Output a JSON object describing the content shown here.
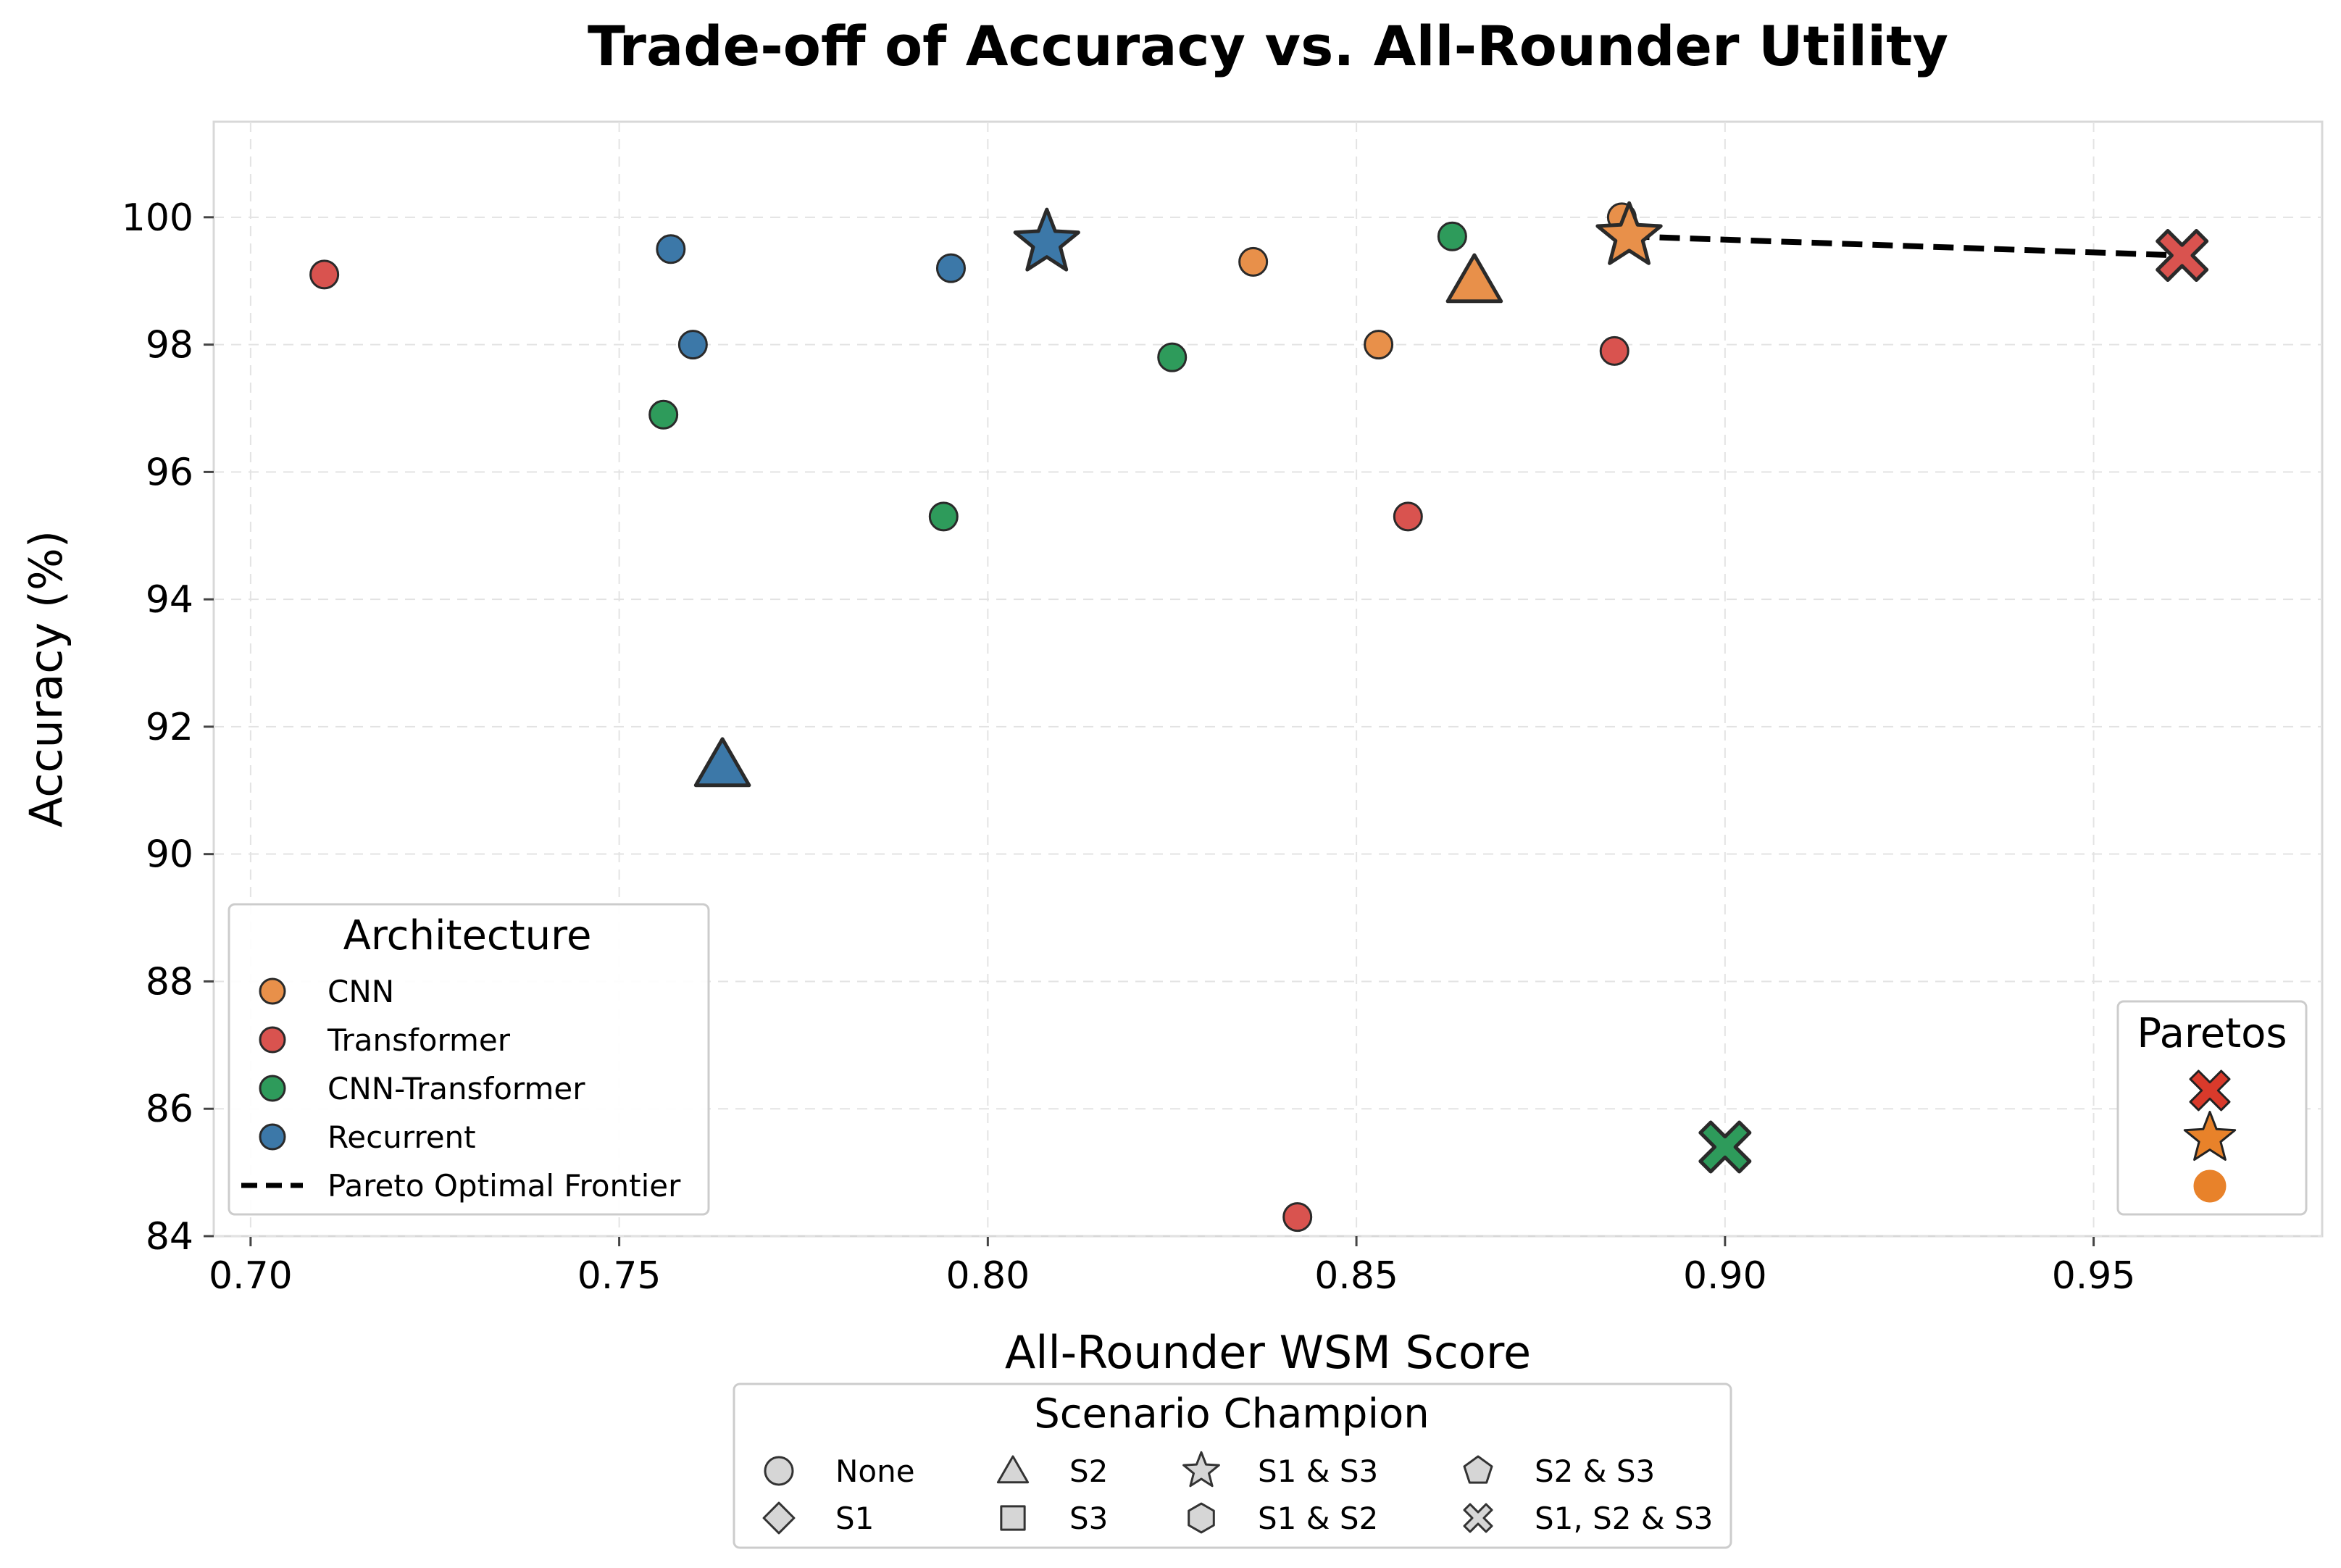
{
  "chart_data": {
    "type": "scatter",
    "title": "Trade-off of Accuracy vs. All-Rounder Utility",
    "xlabel": "All-Rounder WSM Score",
    "ylabel": "Accuracy (%)",
    "xlim": [
      0.695,
      0.981
    ],
    "ylim": [
      84,
      101.5
    ],
    "xticks": [
      "0.70",
      "0.75",
      "0.80",
      "0.85",
      "0.90",
      "0.95"
    ],
    "yticks": [
      "84",
      "86",
      "88",
      "90",
      "92",
      "94",
      "96",
      "98",
      "100"
    ],
    "grid": true,
    "architecture_colors": {
      "CNN": "#E8904A",
      "Transformer": "#D9534F",
      "CNN-Transformer": "#2E9B5B",
      "Recurrent": "#3C78A8"
    },
    "points": [
      {
        "x": 0.71,
        "y": 99.1,
        "arch": "Transformer",
        "champion": "None"
      },
      {
        "x": 0.757,
        "y": 99.5,
        "arch": "Recurrent",
        "champion": "None"
      },
      {
        "x": 0.76,
        "y": 98.0,
        "arch": "Recurrent",
        "champion": "None"
      },
      {
        "x": 0.756,
        "y": 96.9,
        "arch": "CNN-Transformer",
        "champion": "None"
      },
      {
        "x": 0.764,
        "y": 91.4,
        "arch": "Recurrent",
        "champion": "S2"
      },
      {
        "x": 0.795,
        "y": 99.2,
        "arch": "Recurrent",
        "champion": "None"
      },
      {
        "x": 0.794,
        "y": 95.3,
        "arch": "CNN-Transformer",
        "champion": "None"
      },
      {
        "x": 0.808,
        "y": 99.6,
        "arch": "Recurrent",
        "champion": "S1 & S3"
      },
      {
        "x": 0.825,
        "y": 97.8,
        "arch": "CNN-Transformer",
        "champion": "None"
      },
      {
        "x": 0.836,
        "y": 99.3,
        "arch": "CNN",
        "champion": "None"
      },
      {
        "x": 0.842,
        "y": 84.3,
        "arch": "Transformer",
        "champion": "None"
      },
      {
        "x": 0.853,
        "y": 98.0,
        "arch": "CNN",
        "champion": "None"
      },
      {
        "x": 0.857,
        "y": 95.3,
        "arch": "Transformer",
        "champion": "None"
      },
      {
        "x": 0.863,
        "y": 99.7,
        "arch": "CNN-Transformer",
        "champion": "None"
      },
      {
        "x": 0.866,
        "y": 99.0,
        "arch": "CNN",
        "champion": "S2"
      },
      {
        "x": 0.885,
        "y": 97.9,
        "arch": "Transformer",
        "champion": "None"
      },
      {
        "x": 0.886,
        "y": 100.0,
        "arch": "CNN",
        "champion": "None"
      },
      {
        "x": 0.887,
        "y": 99.7,
        "arch": "CNN",
        "champion": "S1 & S3"
      },
      {
        "x": 0.9,
        "y": 85.4,
        "arch": "CNN-Transformer",
        "champion": "S1, S2 & S3"
      },
      {
        "x": 0.962,
        "y": 99.4,
        "arch": "Transformer",
        "champion": "S1, S2 & S3"
      }
    ],
    "pareto_frontier": [
      {
        "x": 0.887,
        "y": 99.7
      },
      {
        "x": 0.962,
        "y": 99.4
      }
    ],
    "legends": {
      "architecture": {
        "title": "Architecture",
        "placement": "lower-left",
        "entries": [
          "CNN",
          "Transformer",
          "CNN-Transformer",
          "Recurrent",
          "Pareto Optimal Frontier"
        ]
      },
      "paretos": {
        "title": "Paretos",
        "placement": "lower-right",
        "entries": [
          {
            "shape": "cross",
            "color": "#D93A2B"
          },
          {
            "shape": "star",
            "color": "#E8822A"
          },
          {
            "shape": "circle",
            "color": "#E8822A"
          }
        ]
      },
      "scenario": {
        "title": "Scenario Champion",
        "placement": "below",
        "entries": [
          {
            "label": "None",
            "shape": "circle"
          },
          {
            "label": "S1",
            "shape": "diamond"
          },
          {
            "label": "S2",
            "shape": "triangle"
          },
          {
            "label": "S3",
            "shape": "square"
          },
          {
            "label": "S1 & S3",
            "shape": "star"
          },
          {
            "label": "S1 & S2",
            "shape": "hexagon"
          },
          {
            "label": "S2 & S3",
            "shape": "pentagon"
          },
          {
            "label": "S1, S2 & S3",
            "shape": "cross"
          }
        ]
      }
    }
  }
}
